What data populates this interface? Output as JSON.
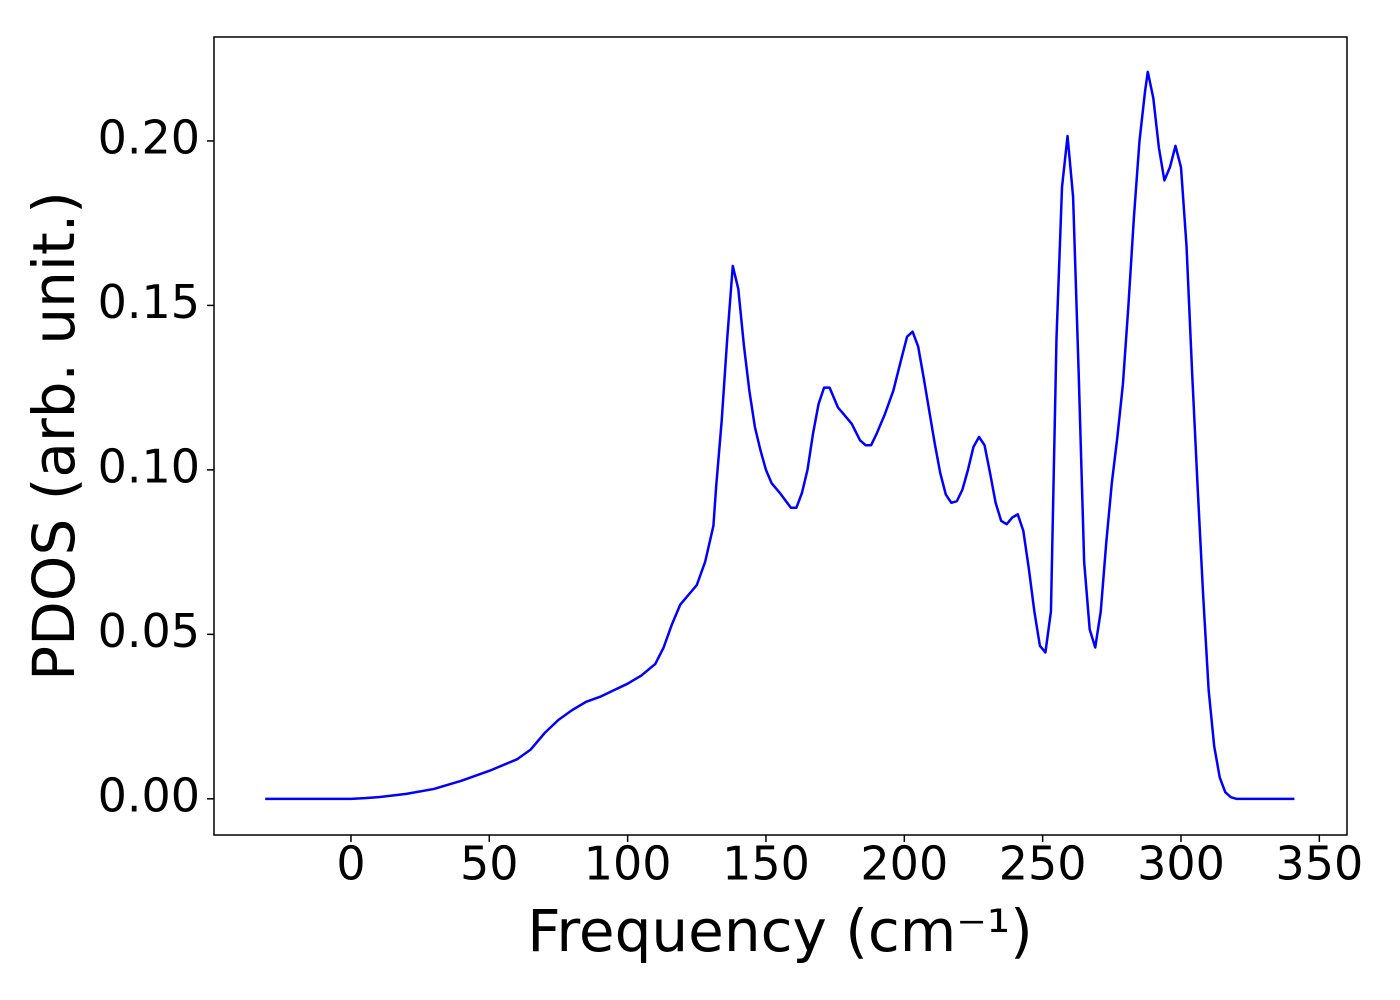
{
  "chart_data": {
    "type": "line",
    "xlabel": "Frequency (cm⁻¹)",
    "ylabel": "PDOS (arb. unit.)",
    "x": [
      -31,
      -20,
      -10,
      0,
      5,
      10,
      20,
      30,
      40,
      50,
      60,
      65,
      70,
      75,
      80,
      85,
      90,
      95,
      100,
      105,
      110,
      113,
      116,
      119,
      122,
      125,
      128,
      131,
      132,
      134,
      136,
      138,
      140,
      142,
      144,
      146,
      148,
      150,
      152,
      155,
      159,
      161,
      163,
      165,
      167,
      169,
      171,
      173,
      176,
      178,
      181,
      184,
      186,
      188,
      190,
      193,
      196,
      199,
      201,
      203,
      205,
      207,
      209,
      211,
      213,
      215,
      217,
      219,
      221,
      223,
      225,
      227,
      229,
      231,
      233,
      235,
      237,
      239,
      241,
      243,
      245,
      247,
      249,
      251,
      253,
      255,
      257,
      259,
      261,
      263,
      265,
      267,
      269,
      271,
      273,
      275,
      277,
      279,
      281,
      283,
      285,
      287,
      288,
      290,
      292,
      294,
      296,
      298,
      300,
      302,
      304,
      306,
      308,
      310,
      312,
      314,
      316,
      318,
      320,
      341
    ],
    "series": [
      {
        "color": "#0000ff",
        "values": [
          0,
          0,
          0,
          0,
          0.0002,
          0.0005,
          0.0015,
          0.003,
          0.0055,
          0.0085,
          0.012,
          0.015,
          0.02,
          0.024,
          0.027,
          0.0295,
          0.031,
          0.033,
          0.035,
          0.0375,
          0.041,
          0.046,
          0.053,
          0.059,
          0.062,
          0.065,
          0.072,
          0.083,
          0.095,
          0.115,
          0.14,
          0.162,
          0.155,
          0.138,
          0.124,
          0.113,
          0.106,
          0.1,
          0.096,
          0.093,
          0.0885,
          0.0885,
          0.093,
          0.1,
          0.111,
          0.12,
          0.125,
          0.125,
          0.119,
          0.117,
          0.114,
          0.109,
          0.1075,
          0.1075,
          0.111,
          0.117,
          0.124,
          0.134,
          0.1405,
          0.142,
          0.1375,
          0.128,
          0.118,
          0.108,
          0.099,
          0.0925,
          0.09,
          0.0905,
          0.094,
          0.1,
          0.107,
          0.11,
          0.1075,
          0.099,
          0.09,
          0.0845,
          0.0835,
          0.0855,
          0.0865,
          0.0815,
          0.07,
          0.057,
          0.0465,
          0.0445,
          0.057,
          0.14,
          0.186,
          0.2015,
          0.183,
          0.13,
          0.072,
          0.0515,
          0.046,
          0.057,
          0.078,
          0.096,
          0.11,
          0.126,
          0.15,
          0.177,
          0.2,
          0.215,
          0.221,
          0.213,
          0.198,
          0.188,
          0.192,
          0.1985,
          0.192,
          0.168,
          0.13,
          0.095,
          0.062,
          0.033,
          0.016,
          0.0065,
          0.002,
          0.0005,
          0,
          0
        ]
      }
    ],
    "xlim": [
      -49.5,
      360
    ],
    "ylim": [
      -0.011,
      0.2316
    ],
    "xticks": [
      0,
      50,
      100,
      150,
      200,
      250,
      300,
      350
    ],
    "yticks": [
      {
        "value": 0,
        "label": "0.00"
      },
      0.05,
      {
        "value": 0.1,
        "label": "0.10"
      },
      0.15,
      {
        "value": 0.2,
        "label": "0.20"
      }
    ]
  }
}
